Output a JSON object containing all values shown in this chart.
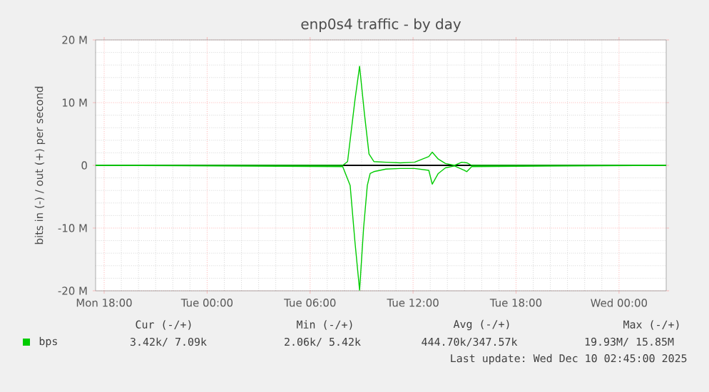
{
  "chart_data": {
    "type": "line",
    "title": "enp0s4 traffic - by day",
    "ylabel": "bits in (-) / out (+) per second",
    "xlim": [
      "2025-12-08T17:30",
      "2025-12-10T02:45"
    ],
    "ylim": [
      -20,
      20
    ],
    "xticks": [
      {
        "value": "2025-12-08T18:00",
        "label": "Mon 18:00"
      },
      {
        "value": "2025-12-09T00:00",
        "label": "Tue 00:00"
      },
      {
        "value": "2025-12-09T06:00",
        "label": "Tue 06:00"
      },
      {
        "value": "2025-12-09T12:00",
        "label": "Tue 12:00"
      },
      {
        "value": "2025-12-09T18:00",
        "label": "Tue 18:00"
      },
      {
        "value": "2025-12-10T00:00",
        "label": "Wed 00:00"
      }
    ],
    "yticks": [
      {
        "value": -20,
        "label": "-20 M"
      },
      {
        "value": -10,
        "label": "-10 M"
      },
      0,
      {
        "value": 10,
        "label": "10 M"
      },
      {
        "value": 20,
        "label": "20 M"
      }
    ],
    "grid": true,
    "legend": "bottom left",
    "marker": "none",
    "line_style": "solid",
    "series": [
      {
        "name": "bps",
        "color": "#00cc00",
        "x": [
          "2025-12-08T17:30",
          "2025-12-09T07:54",
          "2025-12-09T08:11",
          "2025-12-09T08:37",
          "2025-12-09T08:53",
          "2025-12-09T09:10",
          "2025-12-09T09:26",
          "2025-12-09T09:43",
          "2025-12-09T10:25",
          "2025-12-09T11:15",
          "2025-12-09T12:05",
          "2025-12-09T12:55",
          "2025-12-09T13:07",
          "2025-12-09T13:28",
          "2025-12-09T13:53",
          "2025-12-09T14:25",
          "2025-12-09T14:50",
          "2025-12-09T15:08",
          "2025-12-09T15:25",
          "2025-12-10T02:45"
        ],
        "values": [
          0,
          0,
          0.6,
          10.5,
          15.8,
          8.2,
          1.8,
          0.6,
          0.5,
          0.4,
          0.5,
          1.4,
          2.1,
          1.0,
          0.3,
          0,
          0.5,
          0.4,
          0,
          0
        ]
      },
      {
        "color": "#00cc00",
        "x": [
          "2025-12-08T17:30",
          "2025-12-09T07:54",
          "2025-12-09T08:20",
          "2025-12-09T08:37",
          "2025-12-09T08:53",
          "2025-12-09T09:07",
          "2025-12-09T09:20",
          "2025-12-09T09:30",
          "2025-12-09T09:43",
          "2025-12-09T10:25",
          "2025-12-09T11:15",
          "2025-12-09T12:05",
          "2025-12-09T12:55",
          "2025-12-09T13:07",
          "2025-12-09T13:28",
          "2025-12-09T13:53",
          "2025-12-09T14:25",
          "2025-12-09T15:00",
          "2025-12-09T15:08",
          "2025-12-09T15:25",
          "2025-12-10T02:45"
        ],
        "values": [
          0,
          -0.2,
          -3.2,
          -12.3,
          -19.9,
          -10,
          -3.2,
          -1.3,
          -1.0,
          -0.6,
          -0.5,
          -0.5,
          -0.8,
          -3.0,
          -1.3,
          -0.4,
          -0.1,
          -0.8,
          -1.0,
          -0.2,
          0
        ]
      }
    ],
    "ref_lines": [
      {
        "axis": "y",
        "value": 0,
        "color": "#000000"
      }
    ],
    "annotations": [
      "Cur (-/+)",
      "Min (-/+)",
      "Avg (-/+)",
      "Max (-/+)",
      "3.42k/ 7.09k",
      "2.06k/ 5.42k",
      "444.70k/347.57k",
      "19.93M/ 15.85M",
      "Last update: Wed Dec 10 02:45:00 2025"
    ]
  }
}
